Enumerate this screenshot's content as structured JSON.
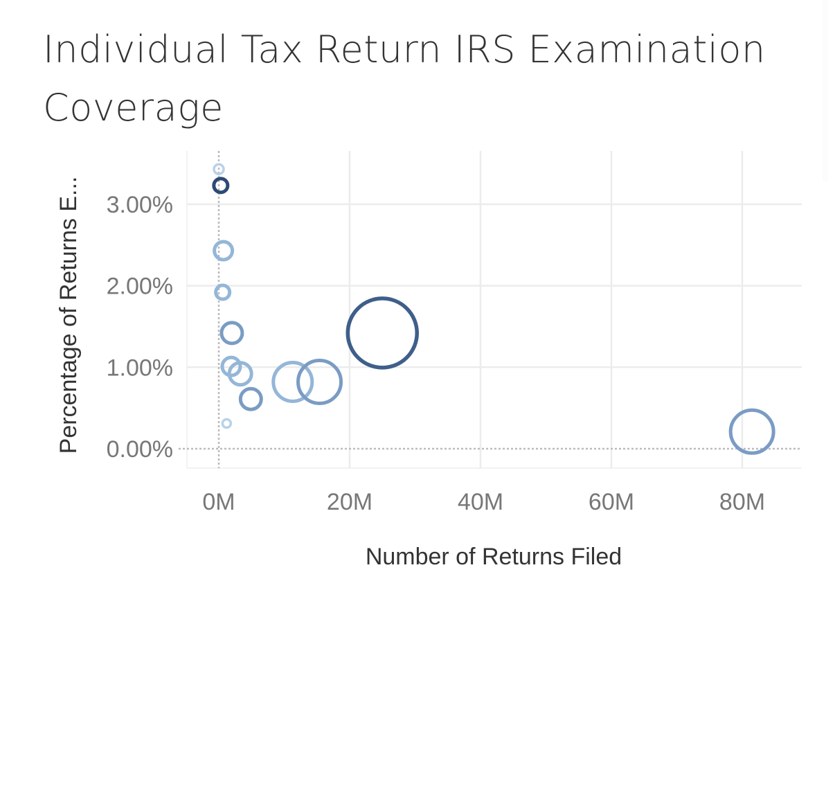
{
  "title": "Individual Tax Return IRS Examination Coverage",
  "title_lines": [
    "Individual Tax Return IRS Examination",
    "Coverage"
  ],
  "colors": {
    "dark": "#3f5f8a",
    "navy": "#2c4a74",
    "mid": "#7a9cc4",
    "light": "#94b6d8",
    "pale": "#b8d2e8",
    "grid": "#ececec",
    "zero_line": "#bbbbbb"
  },
  "chart_data": {
    "type": "scatter",
    "title": "Individual Tax Return IRS Examination Coverage",
    "xlabel": "Number of Returns Filed",
    "ylabel": "Percentage of Returns E...",
    "x_ticks": [
      "0M",
      "20M",
      "40M",
      "60M",
      "80M"
    ],
    "y_ticks": [
      "0.00%",
      "1.00%",
      "2.00%",
      "3.00%"
    ],
    "xlim": [
      -5,
      89
    ],
    "ylim": [
      -0.25,
      3.65
    ],
    "grid": true,
    "legend": "none",
    "marker": "hollow circle (size encodes a measure, color shade encodes a measure)",
    "points": [
      {
        "x_M": 0.0,
        "y_pct": 3.43,
        "r": 7,
        "shade": "pale"
      },
      {
        "x_M": 0.3,
        "y_pct": 3.23,
        "r": 10,
        "shade": "navy"
      },
      {
        "x_M": 0.7,
        "y_pct": 2.43,
        "r": 13,
        "shade": "light"
      },
      {
        "x_M": 0.6,
        "y_pct": 1.92,
        "r": 10,
        "shade": "light"
      },
      {
        "x_M": 2.0,
        "y_pct": 1.42,
        "r": 15,
        "shade": "mid"
      },
      {
        "x_M": 1.9,
        "y_pct": 1.01,
        "r": 13,
        "shade": "light"
      },
      {
        "x_M": 3.3,
        "y_pct": 0.92,
        "r": 16,
        "shade": "light"
      },
      {
        "x_M": 4.9,
        "y_pct": 0.61,
        "r": 15,
        "shade": "mid"
      },
      {
        "x_M": 1.2,
        "y_pct": 0.31,
        "r": 6,
        "shade": "pale"
      },
      {
        "x_M": 11.3,
        "y_pct": 0.82,
        "r": 28,
        "shade": "light"
      },
      {
        "x_M": 15.4,
        "y_pct": 0.82,
        "r": 31,
        "shade": "mid"
      },
      {
        "x_M": 25.0,
        "y_pct": 1.42,
        "r": 50,
        "shade": "dark"
      },
      {
        "x_M": 81.5,
        "y_pct": 0.21,
        "r": 31,
        "shade": "mid"
      }
    ]
  }
}
